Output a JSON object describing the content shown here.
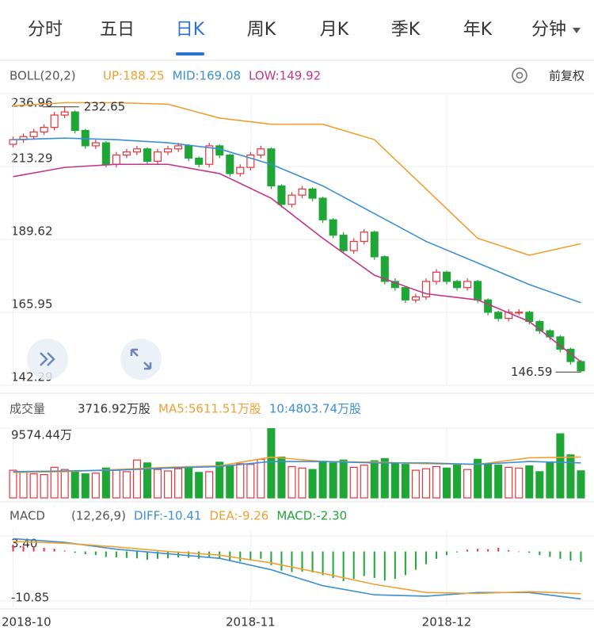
{
  "tabs": [
    "分时",
    "五日",
    "日K",
    "周K",
    "月K",
    "季K",
    "年K",
    "分钟"
  ],
  "selected_tab": 2,
  "chart_data": {
    "type": "candlestick",
    "header": {
      "title": "BOLL(20,2)",
      "items": [
        "UP:188.25",
        "MID:169.08",
        "LOW:149.92"
      ],
      "adjust": "前复权"
    },
    "open": [
      220.5,
      222,
      223,
      224.5,
      226,
      230,
      231,
      225,
      220,
      221,
      214,
      217,
      218,
      219,
      215,
      218,
      219,
      220,
      216,
      214,
      220,
      217,
      211,
      213,
      217,
      219,
      207,
      201,
      204,
      206,
      203,
      196,
      191,
      186,
      189,
      192,
      184,
      176,
      174,
      170,
      171,
      176,
      179,
      176,
      174,
      176,
      170,
      166,
      164,
      166,
      166,
      163,
      160,
      158,
      154,
      150
    ],
    "close": [
      222,
      223,
      224.5,
      226,
      230,
      231,
      225,
      220,
      221,
      214,
      217,
      218,
      219,
      215,
      218,
      219,
      220,
      216,
      214,
      220,
      217,
      211,
      213,
      217,
      219,
      207,
      201,
      204,
      206,
      203,
      196,
      191,
      186,
      189,
      192,
      184,
      176,
      174,
      170,
      171,
      176,
      179,
      176,
      174,
      176,
      170,
      166,
      164,
      166,
      166,
      163,
      160,
      158,
      154,
      150,
      147
    ],
    "high": [
      223,
      224,
      225.5,
      227,
      231,
      232.65,
      231.5,
      225.5,
      222,
      221.5,
      218,
      219,
      220,
      219.5,
      219,
      220,
      221,
      220.5,
      216.5,
      221,
      220.5,
      217.5,
      214,
      218,
      220,
      219.5,
      207.5,
      205,
      207,
      206.5,
      203.5,
      196.5,
      192,
      190,
      193,
      192.5,
      184.5,
      177,
      174.5,
      172,
      177,
      180,
      179.5,
      176.5,
      177,
      176.5,
      170.5,
      166.5,
      167,
      167,
      166.5,
      163.5,
      160.5,
      158.5,
      154.5,
      150.5
    ],
    "low": [
      219.5,
      221,
      222,
      223.5,
      225,
      229,
      224,
      219,
      219,
      213,
      213,
      216,
      217,
      214,
      214,
      217,
      218,
      215,
      213,
      213,
      216,
      210,
      210,
      212,
      216,
      206,
      200,
      200,
      203,
      202,
      195,
      190,
      185,
      185,
      188,
      183,
      175,
      173,
      169,
      169,
      170,
      175,
      175,
      173,
      173,
      169,
      165,
      163,
      163,
      165,
      162,
      159,
      157,
      153,
      149,
      146.59
    ],
    "up_color": "#e8333a",
    "down_color": "#1fa637",
    "ylim": [
      142.29,
      236.96
    ],
    "yticks": [
      236.96,
      213.29,
      189.62,
      165.95,
      142.29
    ],
    "lines": {
      "x": [
        0,
        5,
        10,
        15,
        20,
        25,
        30,
        35,
        40,
        45,
        50,
        55
      ],
      "series": [
        {
          "color": "#f0a032",
          "values": [
            233,
            234,
            234,
            233.5,
            229,
            227,
            227,
            222,
            206,
            190,
            184.5,
            188.25
          ]
        },
        {
          "color": "#3d8fd3",
          "values": [
            222,
            222.5,
            222,
            221,
            219,
            214,
            207,
            198,
            189,
            182,
            175,
            169.08
          ]
        },
        {
          "color": "#c23689",
          "values": [
            210,
            213,
            214,
            214,
            211,
            203,
            190,
            178,
            172,
            170,
            163,
            149.92
          ]
        }
      ]
    },
    "volume": {
      "header": {
        "title": "成交量",
        "items": [
          "3716.92万股",
          "MA5:5611.51万股",
          "10:4803.74万股"
        ]
      },
      "values": [
        3800,
        3500,
        3300,
        3200,
        4200,
        3900,
        3600,
        3300,
        3400,
        4100,
        3800,
        3600,
        5200,
        4800,
        3900,
        3700,
        4000,
        4300,
        3500,
        3600,
        4900,
        4400,
        4700,
        4600,
        5300,
        9500,
        5600,
        4300,
        4100,
        3900,
        5000,
        4800,
        5200,
        4200,
        4500,
        5100,
        5400,
        4700,
        4600,
        3800,
        4000,
        4300,
        4100,
        4600,
        3900,
        5300,
        4700,
        4500,
        4200,
        4100,
        4400,
        3600,
        4800,
        8800,
        5900,
        3716.92
      ],
      "ylim": [
        0,
        9574.44
      ],
      "yticks": [
        {
          "value": 9574.44,
          "label": "9574.44万"
        }
      ],
      "lines": {
        "x": [
          0,
          5,
          10,
          15,
          20,
          25,
          30,
          35,
          40,
          45,
          50,
          55
        ],
        "series": [
          {
            "color": "#f0a032",
            "values": [
              3500,
              3600,
              3900,
              4200,
              4400,
              5600,
              5000,
              4900,
              4700,
              4600,
              5500,
              5611.51
            ]
          },
          {
            "color": "#3d8fd3",
            "values": [
              3600,
              3700,
              3800,
              4100,
              4300,
              5000,
              5000,
              4800,
              4800,
              4600,
              5000,
              4803.74
            ]
          }
        ]
      }
    },
    "macd": {
      "header": {
        "title": "MACD",
        "items": [
          "(12,26,9)",
          "DIFF:-10.41",
          "DEA:-9.26",
          "MACD:-2.30"
        ]
      },
      "values": [
        1.5,
        1.2,
        1.0,
        0.8,
        0.6,
        0.2,
        -0.3,
        -0.6,
        -0.8,
        -1.2,
        -1.3,
        -1.4,
        -1.5,
        -1.8,
        -1.6,
        -1.5,
        -1.3,
        -1.4,
        -1.6,
        -1.2,
        -1.5,
        -2.0,
        -2.2,
        -2.0,
        -1.6,
        -3.0,
        -4.2,
        -4.5,
        -4.4,
        -4.6,
        -5.2,
        -5.8,
        -6.5,
        -6.0,
        -5.4,
        -5.8,
        -6.4,
        -6.0,
        -5.2,
        -4.0,
        -2.8,
        -1.6,
        -0.8,
        -0.2,
        0.4,
        0.6,
        0.5,
        0.8,
        0.3,
        -0.1,
        -0.3,
        -0.8,
        -1.2,
        -1.6,
        -2.0,
        -2.3
      ],
      "ylim": [
        -10.85,
        3.4
      ],
      "yticks": [
        {
          "value": 3.4,
          "label": "3.40"
        },
        -10.85
      ],
      "lines": {
        "x": [
          0,
          5,
          10,
          15,
          20,
          25,
          30,
          35,
          40,
          45,
          50,
          55
        ],
        "series": [
          {
            "color": "#3d8fd3",
            "values": [
              2.8,
              2.0,
              0.5,
              -0.5,
              -1.5,
              -4.0,
              -7.5,
              -9.5,
              -9.8,
              -9.0,
              -9.0,
              -10.41
            ]
          },
          {
            "color": "#f0a032",
            "values": [
              2.2,
              1.8,
              1.0,
              0.0,
              -0.8,
              -2.5,
              -4.8,
              -7.2,
              -9.0,
              -9.2,
              -8.8,
              -9.26
            ]
          }
        ]
      }
    },
    "date_labels": [
      {
        "label": "2018-10",
        "index": 0
      },
      {
        "label": "2018-11",
        "index": 23
      },
      {
        "label": "2018-12",
        "index": 42
      }
    ]
  }
}
